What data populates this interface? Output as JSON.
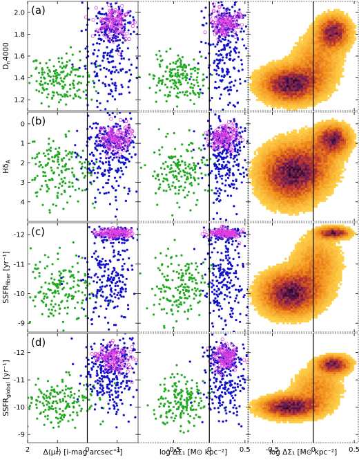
{
  "chart_data": {
    "type": "scatter",
    "layout": "4 rows x 3 columns",
    "panel_labels": [
      "(a)",
      "(b)",
      "(c)",
      "(d)"
    ],
    "rows": [
      {
        "label": "(a)",
        "ylabel": "D",
        "ylabel_sub": "n",
        "ylabel_tail": "4000",
        "ylim": [
          1.1,
          2.1
        ],
        "inverted": false,
        "yticks": [
          1.2,
          1.4,
          1.6,
          1.8,
          2.0
        ],
        "ytick_labels": [
          "1.2",
          "1.4",
          "1.6",
          "1.8",
          "2.0"
        ]
      },
      {
        "label": "(b)",
        "ylabel": "Hδ",
        "ylabel_sub": "A",
        "ylabel_tail": "",
        "ylim": [
          -0.6,
          5.0
        ],
        "inverted": true,
        "yticks": [
          0,
          1,
          2,
          3,
          4
        ],
        "ytick_labels": [
          "0",
          "1",
          "2",
          "3",
          "4"
        ]
      },
      {
        "label": "(c)",
        "ylabel": "SSFR",
        "ylabel_sub": "fiber",
        "ylabel_tail": " [yr⁻¹]",
        "ylim": [
          -12.4,
          -8.7
        ],
        "inverted": true,
        "yticks": [
          -12,
          -11,
          -10,
          -9
        ],
        "ytick_labels": [
          "-12",
          "-11",
          "-10",
          "-9"
        ]
      },
      {
        "label": "(d)",
        "ylabel": "SSFR",
        "ylabel_sub": "global",
        "ylabel_tail": " [yr⁻¹]",
        "ylim": [
          -12.7,
          -8.7
        ],
        "inverted": true,
        "yticks": [
          -12,
          -11,
          -10,
          -9
        ],
        "ytick_labels": [
          "-12",
          "-11",
          "-10",
          "-9"
        ]
      }
    ],
    "columns": [
      {
        "xlabel": "Δ⟨μₑ⟩ [i-mag arcsec⁻²]",
        "xlim": [
          2,
          -1.7
        ],
        "xticks": [
          2,
          1,
          0,
          -1
        ],
        "xtick_labels": [
          "2",
          "1",
          "0",
          "-1"
        ],
        "kind": "scatter"
      },
      {
        "xlabel": "log ΔΣ₁ [M⊙ kpc⁻²]",
        "xlim": [
          -1.0,
          0.55
        ],
        "xticks": [
          -0.5,
          0,
          0.5
        ],
        "xtick_labels": [
          "-0.5",
          "0",
          "0.5"
        ],
        "kind": "scatter"
      },
      {
        "xlabel": "log ΔΣ₁ [M⊙ kpc⁻²]",
        "xlim": [
          -0.8,
          0.55
        ],
        "xticks": [
          -0.5,
          0,
          0.5
        ],
        "xtick_labels": [
          "-0.5",
          "0",
          "0.5"
        ],
        "kind": "density"
      }
    ],
    "series_colors": {
      "green": "#22aa22",
      "blue": "#1010c8",
      "magenta": "#e040e0"
    },
    "density_colormap": [
      "#ffffff",
      "#ffd24a",
      "#f08a1a",
      "#c0392b",
      "#6a1a5a",
      "#1a0a20"
    ],
    "scatter_groups": [
      {
        "color": "green",
        "x_center": 0.9,
        "x_spread": 0.55,
        "y_center": [
          1.38,
          2.4,
          -10.2,
          -10.2
        ],
        "y_spread": [
          0.12,
          0.9,
          0.55,
          0.45
        ],
        "count": 170
      },
      {
        "color": "blue",
        "x_center": -0.75,
        "x_spread": 0.45,
        "y_center": [
          1.6,
          1.8,
          -10.6,
          -11.0
        ],
        "y_spread": [
          0.28,
          1.2,
          0.8,
          0.7
        ],
        "count": 220
      },
      {
        "color": "blue",
        "x_center": -0.9,
        "x_spread": 0.35,
        "y_center": [
          1.88,
          0.7,
          -12.0,
          -11.8
        ],
        "y_spread": [
          0.08,
          0.4,
          0.12,
          0.3
        ],
        "count": 100
      },
      {
        "color": "magenta",
        "x_center": -0.9,
        "x_spread": 0.3,
        "y_center": [
          1.9,
          0.7,
          -12.05,
          -11.8
        ],
        "y_spread": [
          0.07,
          0.35,
          0.08,
          0.25
        ],
        "count": 110
      }
    ],
    "density_clusters": [
      {
        "x": -0.28,
        "y": [
          1.34,
          2.6,
          -10.0,
          -10.0
        ],
        "sx": 0.22,
        "sy": [
          0.1,
          0.9,
          0.45,
          0.25
        ],
        "w": 1.0
      },
      {
        "x": 0.25,
        "y": [
          1.82,
          0.8,
          -12.05,
          -11.55
        ],
        "sx": 0.12,
        "sy": [
          0.09,
          0.45,
          0.12,
          0.2
        ],
        "w": 0.9
      },
      {
        "x": 0.05,
        "y": [
          1.55,
          1.9,
          -11.0,
          -10.7
        ],
        "sx": 0.18,
        "sy": [
          0.15,
          0.9,
          0.6,
          0.45
        ],
        "w": 0.35
      }
    ],
    "vertical_lines_x": [
      0,
      0,
      0
    ]
  }
}
